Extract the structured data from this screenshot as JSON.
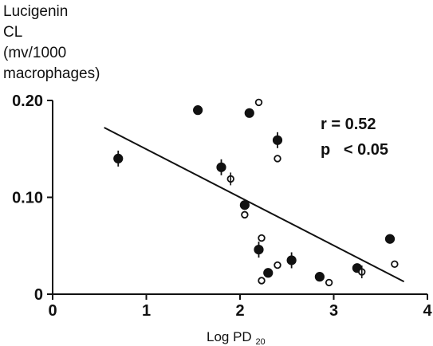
{
  "chart_data": {
    "type": "scatter",
    "ylabel_lines": [
      "Lucigenin",
      "CL",
      "(mv/1000",
      "macrophages)"
    ],
    "xlabel_main": "Log PD",
    "xlabel_sub": "20",
    "x_ticks": [
      "0",
      "1",
      "2",
      "3",
      "4"
    ],
    "y_ticks": [
      "0",
      "0.10",
      "0.20"
    ],
    "xlim": [
      0,
      4
    ],
    "ylim": [
      0,
      0.2
    ],
    "annotations": {
      "r": "r = 0.52",
      "p": "p   < 0.05"
    },
    "regression_line": {
      "x": [
        0.55,
        3.75
      ],
      "y": [
        0.172,
        0.013
      ]
    },
    "series": [
      {
        "marker": "filled",
        "points": [
          {
            "x": 0.7,
            "y": 0.14,
            "whisker": true
          },
          {
            "x": 1.55,
            "y": 0.19,
            "whisker": false
          },
          {
            "x": 2.1,
            "y": 0.187,
            "whisker": false
          },
          {
            "x": 2.4,
            "y": 0.159,
            "whisker": true
          },
          {
            "x": 1.8,
            "y": 0.131,
            "whisker": true
          },
          {
            "x": 2.05,
            "y": 0.092,
            "whisker": false
          },
          {
            "x": 2.2,
            "y": 0.046,
            "whisker": true
          },
          {
            "x": 2.3,
            "y": 0.022,
            "whisker": false
          },
          {
            "x": 2.55,
            "y": 0.035,
            "whisker": true
          },
          {
            "x": 2.85,
            "y": 0.018,
            "whisker": false
          },
          {
            "x": 3.25,
            "y": 0.027,
            "whisker": false
          },
          {
            "x": 3.6,
            "y": 0.057,
            "whisker": false
          }
        ]
      },
      {
        "marker": "open",
        "points": [
          {
            "x": 2.2,
            "y": 0.198,
            "whisker": false
          },
          {
            "x": 2.4,
            "y": 0.14,
            "whisker": false
          },
          {
            "x": 1.9,
            "y": 0.119,
            "whisker": true
          },
          {
            "x": 2.05,
            "y": 0.082,
            "whisker": false
          },
          {
            "x": 2.23,
            "y": 0.058,
            "whisker": false
          },
          {
            "x": 2.4,
            "y": 0.03,
            "whisker": false
          },
          {
            "x": 2.23,
            "y": 0.014,
            "whisker": false
          },
          {
            "x": 2.95,
            "y": 0.012,
            "whisker": false
          },
          {
            "x": 3.3,
            "y": 0.023,
            "whisker": true
          },
          {
            "x": 3.65,
            "y": 0.031,
            "whisker": false
          }
        ]
      }
    ]
  }
}
